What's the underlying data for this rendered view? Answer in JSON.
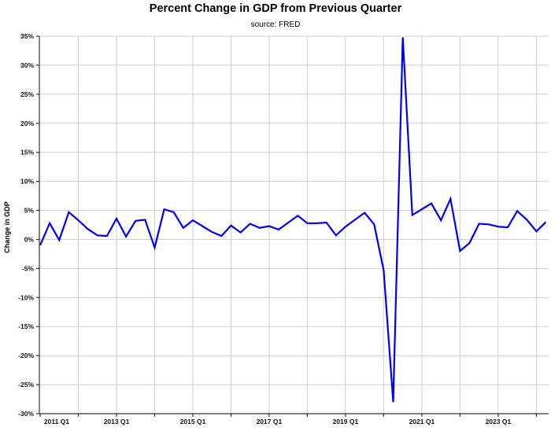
{
  "chart_data": {
    "type": "line",
    "title": "Percent Change in GDP from Previous Quarter",
    "subtitle": "source: FRED",
    "ylabel": "Change in GDP",
    "xlabel": "",
    "grid": true,
    "legend": "none",
    "ylim": [
      -30,
      35
    ],
    "y_ticks": [
      35,
      30,
      25,
      20,
      15,
      10,
      5,
      0,
      -5,
      -10,
      -15,
      -20,
      -25,
      -30
    ],
    "y_tick_labels": [
      "35%",
      "30%",
      "25%",
      "20%",
      "15%",
      "10%",
      "5%",
      "0%",
      "-5%",
      "-10%",
      "-15%",
      "-20%",
      "-25%",
      "-30%"
    ],
    "x_tick_labels": [
      "2011 Q1",
      "2013 Q1",
      "2015 Q1",
      "2017 Q1",
      "2019 Q1",
      "2021 Q1",
      "2023 Q1"
    ],
    "x_start": "2011 Q1",
    "x_end": "2024 Q2",
    "frequency": "quarterly",
    "colors": {
      "line": "#0000EE",
      "grid": "#CFCFCF",
      "axis": "#333333"
    },
    "series": [
      {
        "name": "Percent change in GDP from previous quarter",
        "values": [
          -1.0,
          2.8,
          -0.1,
          4.7,
          3.3,
          1.8,
          0.7,
          0.6,
          3.6,
          0.5,
          3.2,
          3.4,
          -1.4,
          5.2,
          4.7,
          2.0,
          3.3,
          2.3,
          1.3,
          0.6,
          2.4,
          1.2,
          2.7,
          2.0,
          2.3,
          1.7,
          2.9,
          4.1,
          2.8,
          2.8,
          2.9,
          0.7,
          2.2,
          3.4,
          4.6,
          2.6,
          -5.3,
          -28.0,
          34.8,
          4.2,
          5.2,
          6.2,
          3.3,
          7.0,
          -2.0,
          -0.6,
          2.7,
          2.6,
          2.2,
          2.1,
          4.9,
          3.4,
          1.4,
          3.0
        ]
      }
    ]
  }
}
